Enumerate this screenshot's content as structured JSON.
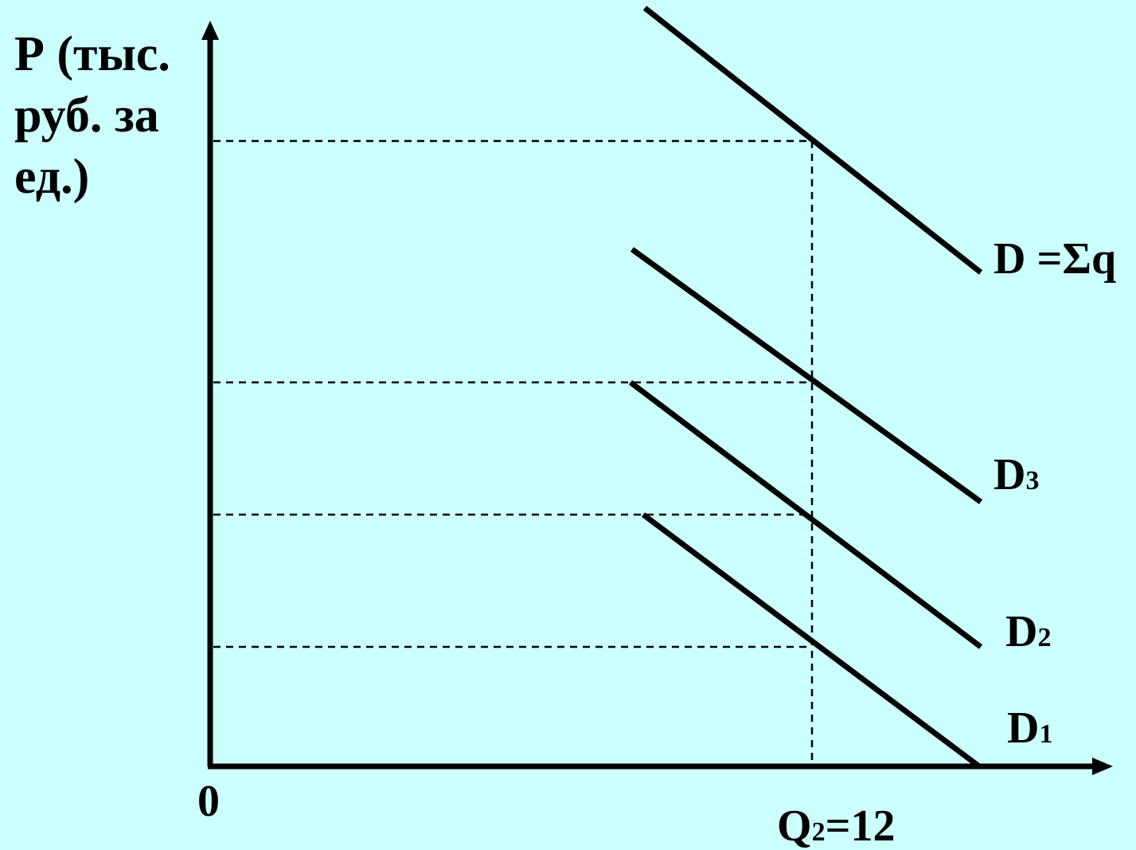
{
  "colors": {
    "background": "#ccffff",
    "lines": "#000000"
  },
  "y_axis_label": [
    "Р (тыс.",
    "руб. за",
    "ед.)"
  ],
  "origin_label": "0",
  "x_marker_label": {
    "main": "Q",
    "sub": "2",
    "rest": "=12"
  },
  "curves": [
    {
      "main": "D ",
      "rest": "=Σq",
      "sub": ""
    },
    {
      "main": "D",
      "sub": "3",
      "rest": ""
    },
    {
      "main": "D",
      "sub": "2",
      "rest": ""
    },
    {
      "main": "D",
      "sub": "1",
      "rest": ""
    }
  ]
}
